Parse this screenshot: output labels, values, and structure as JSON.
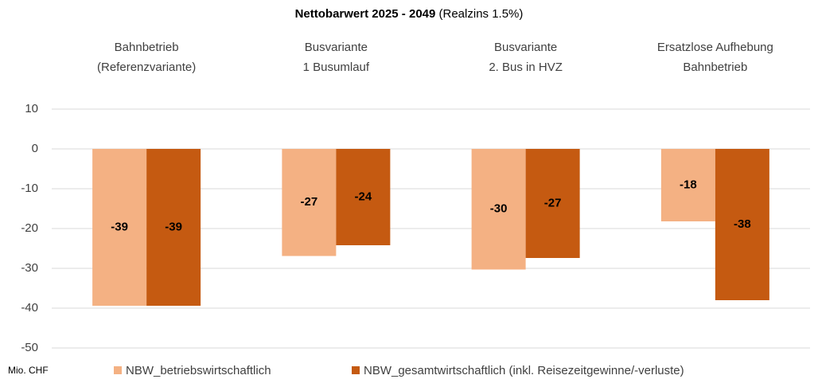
{
  "chart_data": {
    "type": "bar",
    "title": "Nettobarwert 2025 - 2049",
    "title_note": "(Realzins 1.5%)",
    "y_label": "Mio. CHF",
    "categories": [
      [
        "Bahnbetrieb",
        "(Referenzvariante)"
      ],
      [
        "Busvariante",
        "1 Busumlauf"
      ],
      [
        "Busvariante",
        "2. Bus in HVZ"
      ],
      [
        "Ersatzlose Aufhebung",
        "Bahnbetrieb"
      ]
    ],
    "series": [
      {
        "name": "NBW_betriebswirtschaftlich",
        "color": "#f4b183",
        "values": [
          -39.4,
          -26.9,
          -30.3,
          -18.2
        ],
        "value_labels": [
          "-39",
          "-27",
          "-30",
          "-18"
        ]
      },
      {
        "name": "NBW_gesamtwirtschaftlich (inkl. Reisezeitgewinne/-verluste)",
        "color": "#c55a11",
        "values": [
          -39.4,
          -24.2,
          -27.4,
          -38
        ],
        "value_labels": [
          "-39",
          "-24",
          "-27",
          "-38"
        ]
      }
    ],
    "ylim": [
      -50,
      10
    ],
    "yticks": [
      -50,
      -40,
      -30,
      -20,
      -10,
      0,
      10
    ],
    "grid": true,
    "legend": "bottom"
  }
}
